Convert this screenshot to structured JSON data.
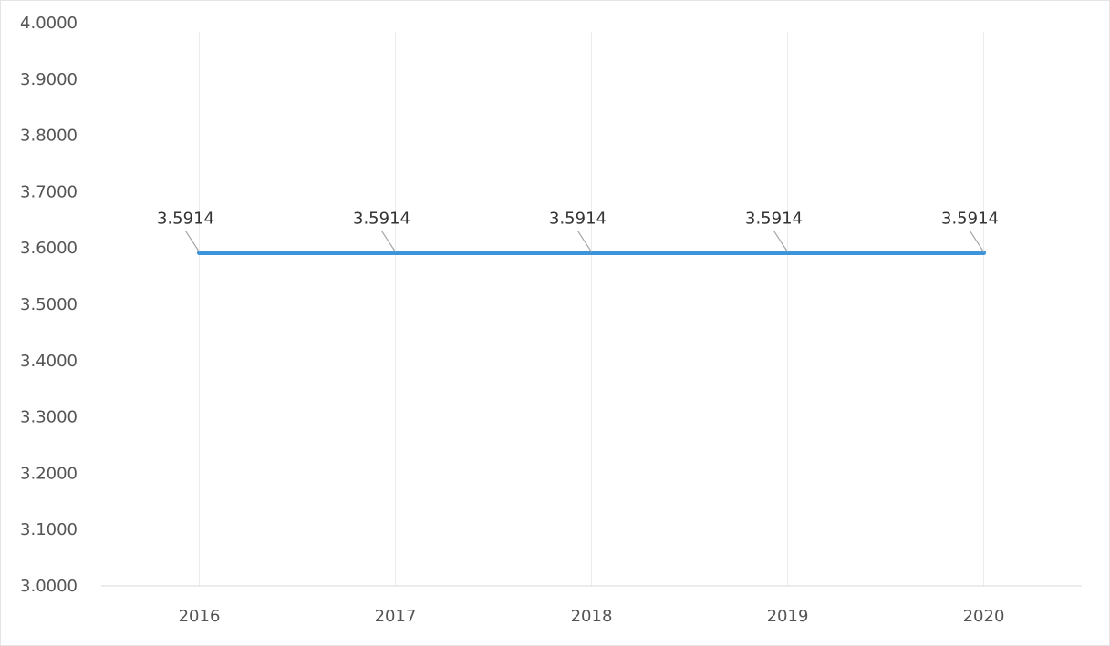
{
  "chart_data": {
    "type": "line",
    "title": "",
    "xlabel": "",
    "ylabel": "",
    "categories": [
      "2016",
      "2017",
      "2018",
      "2019",
      "2020"
    ],
    "series": [
      {
        "values": [
          3.5914,
          3.5914,
          3.5914,
          3.5914,
          3.5914
        ],
        "data_labels": [
          "3.5914",
          "3.5914",
          "3.5914",
          "3.5914",
          "3.5914"
        ],
        "color": "#3b95d8"
      }
    ],
    "ylim": [
      3.0,
      4.0
    ],
    "y_ticks": [
      "3.0000",
      "3.1000",
      "3.2000",
      "3.3000",
      "3.4000",
      "3.5000",
      "3.6000",
      "3.7000",
      "3.8000",
      "3.9000",
      "4.0000"
    ],
    "grid": "vertical",
    "legend": "none"
  }
}
